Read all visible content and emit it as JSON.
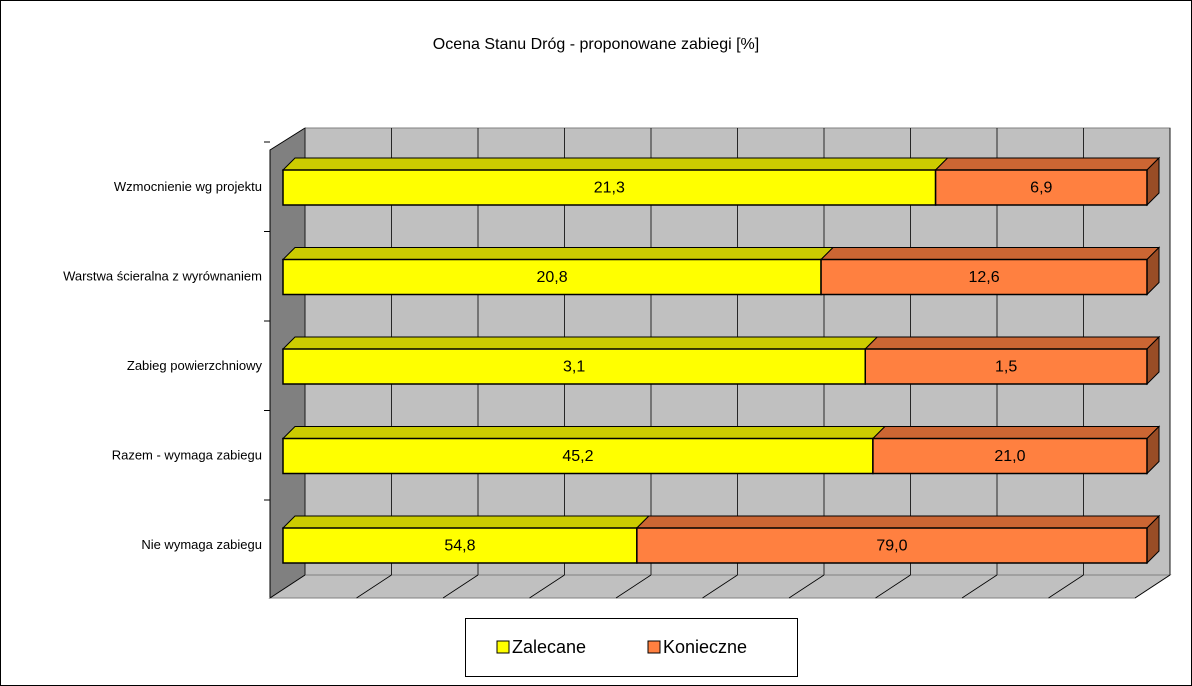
{
  "chart_data": {
    "type": "bar",
    "orientation": "horizontal",
    "stacked": "percent",
    "title": "Ocena Stanu Dróg - proponowane zabiegi [%]",
    "categories": [
      "Wzmocnienie wg projektu",
      "Warstwa ścieralna z wyrównaniem",
      "Zabieg powierzchniowy",
      "Razem - wymaga zabiegu",
      "Nie wymaga zabiegu"
    ],
    "series": [
      {
        "name": "Zalecane",
        "color": "#ffff00",
        "values": [
          21.3,
          20.8,
          3.1,
          45.2,
          54.8
        ],
        "value_labels": [
          "21,3",
          "20,8",
          "3,1",
          "45,2",
          "54,8"
        ]
      },
      {
        "name": "Konieczne",
        "color": "#ff8040",
        "values": [
          6.9,
          12.6,
          1.5,
          21.0,
          79.0
        ],
        "value_labels": [
          "6,9",
          "12,6",
          "1,5",
          "21,0",
          "79,0"
        ]
      }
    ],
    "xlim": [
      0,
      100
    ],
    "xticks": [
      0,
      10,
      20,
      30,
      40,
      50,
      60,
      70,
      80,
      90,
      100
    ],
    "grid": true,
    "legend": "bottom"
  }
}
